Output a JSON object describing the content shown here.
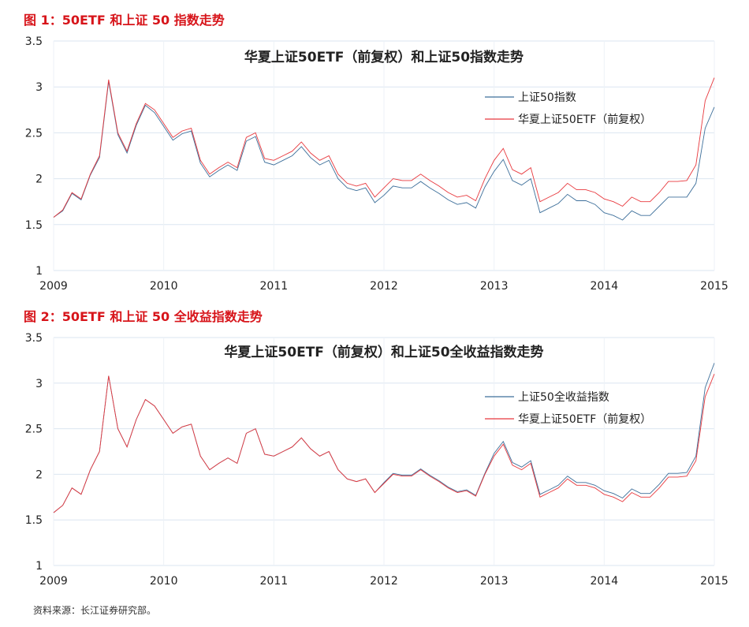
{
  "source": "资料来源：长江证券研究部。",
  "colors": {
    "red": "#e8383d",
    "blue": "#3d6f9a",
    "grid": "#dbe6f1"
  },
  "chart_data": [
    {
      "type": "line",
      "caption": "图 1：50ETF 和上证 50 指数走势",
      "title": "华夏上证50ETF（前复权）和上证50指数走势",
      "ylim": [
        1,
        3.5
      ],
      "yticks": [
        "1",
        "1.5",
        "2",
        "2.5",
        "3",
        "3.5"
      ],
      "xticks": [
        "2009",
        "2010",
        "2011",
        "2012",
        "2013",
        "2014",
        "2015"
      ],
      "grid": true,
      "legend": "top-right",
      "dates": [
        "2009-01",
        "2009-02",
        "2009-03",
        "2009-04",
        "2009-05",
        "2009-06",
        "2009-07",
        "2009-08",
        "2009-09",
        "2009-10",
        "2009-11",
        "2009-12",
        "2010-01",
        "2010-02",
        "2010-03",
        "2010-04",
        "2010-05",
        "2010-06",
        "2010-07",
        "2010-08",
        "2010-09",
        "2010-10",
        "2010-11",
        "2010-12",
        "2011-01",
        "2011-02",
        "2011-03",
        "2011-04",
        "2011-05",
        "2011-06",
        "2011-07",
        "2011-08",
        "2011-09",
        "2011-10",
        "2011-11",
        "2011-12",
        "2012-01",
        "2012-02",
        "2012-03",
        "2012-04",
        "2012-05",
        "2012-06",
        "2012-07",
        "2012-08",
        "2012-09",
        "2012-10",
        "2012-11",
        "2012-12",
        "2013-01",
        "2013-02",
        "2013-03",
        "2013-04",
        "2013-05",
        "2013-06",
        "2013-07",
        "2013-08",
        "2013-09",
        "2013-10",
        "2013-11",
        "2013-12",
        "2014-01",
        "2014-02",
        "2014-03",
        "2014-04",
        "2014-05",
        "2014-06",
        "2014-07",
        "2014-08",
        "2014-09",
        "2014-10",
        "2014-11",
        "2014-12",
        "2015-01"
      ],
      "series": [
        {
          "name": "上证50指数",
          "color": "#3d6f9a",
          "values": [
            1.58,
            1.65,
            1.84,
            1.77,
            2.04,
            2.23,
            3.06,
            2.48,
            2.28,
            2.58,
            2.8,
            2.72,
            2.57,
            2.42,
            2.49,
            2.52,
            2.17,
            2.02,
            2.09,
            2.15,
            2.09,
            2.41,
            2.46,
            2.18,
            2.15,
            2.2,
            2.25,
            2.35,
            2.23,
            2.15,
            2.2,
            2.0,
            1.9,
            1.87,
            1.9,
            1.74,
            1.82,
            1.92,
            1.9,
            1.9,
            1.97,
            1.9,
            1.84,
            1.77,
            1.72,
            1.74,
            1.68,
            1.91,
            2.08,
            2.21,
            1.98,
            1.93,
            2.0,
            1.63,
            1.68,
            1.73,
            1.83,
            1.76,
            1.76,
            1.72,
            1.63,
            1.6,
            1.55,
            1.65,
            1.6,
            1.6,
            1.7,
            1.8,
            1.8,
            1.8,
            1.95,
            2.55,
            2.78
          ]
        },
        {
          "name": "华夏上证50ETF（前复权）",
          "color": "#e8383d",
          "values": [
            1.58,
            1.66,
            1.85,
            1.78,
            2.05,
            2.25,
            3.08,
            2.5,
            2.3,
            2.6,
            2.82,
            2.75,
            2.6,
            2.45,
            2.52,
            2.55,
            2.2,
            2.05,
            2.12,
            2.18,
            2.12,
            2.45,
            2.5,
            2.22,
            2.2,
            2.25,
            2.3,
            2.4,
            2.28,
            2.2,
            2.25,
            2.05,
            1.95,
            1.92,
            1.95,
            1.8,
            1.9,
            2.0,
            1.98,
            1.98,
            2.05,
            1.98,
            1.92,
            1.85,
            1.8,
            1.82,
            1.76,
            2.0,
            2.2,
            2.33,
            2.1,
            2.05,
            2.12,
            1.75,
            1.8,
            1.85,
            1.95,
            1.88,
            1.88,
            1.85,
            1.78,
            1.75,
            1.7,
            1.8,
            1.75,
            1.75,
            1.85,
            1.97,
            1.97,
            1.98,
            2.15,
            2.85,
            3.1
          ]
        }
      ]
    },
    {
      "type": "line",
      "caption": "图 2：50ETF 和上证 50 全收益指数走势",
      "title": "华夏上证50ETF（前复权）和上证50全收益指数走势",
      "ylim": [
        1,
        3.5
      ],
      "yticks": [
        "1",
        "1.5",
        "2",
        "2.5",
        "3",
        "3.5"
      ],
      "xticks": [
        "2009",
        "2010",
        "2011",
        "2012",
        "2013",
        "2014",
        "2015"
      ],
      "grid": true,
      "legend": "top-right",
      "dates": [
        "2009-01",
        "2009-02",
        "2009-03",
        "2009-04",
        "2009-05",
        "2009-06",
        "2009-07",
        "2009-08",
        "2009-09",
        "2009-10",
        "2009-11",
        "2009-12",
        "2010-01",
        "2010-02",
        "2010-03",
        "2010-04",
        "2010-05",
        "2010-06",
        "2010-07",
        "2010-08",
        "2010-09",
        "2010-10",
        "2010-11",
        "2010-12",
        "2011-01",
        "2011-02",
        "2011-03",
        "2011-04",
        "2011-05",
        "2011-06",
        "2011-07",
        "2011-08",
        "2011-09",
        "2011-10",
        "2011-11",
        "2011-12",
        "2012-01",
        "2012-02",
        "2012-03",
        "2012-04",
        "2012-05",
        "2012-06",
        "2012-07",
        "2012-08",
        "2012-09",
        "2012-10",
        "2012-11",
        "2012-12",
        "2013-01",
        "2013-02",
        "2013-03",
        "2013-04",
        "2013-05",
        "2013-06",
        "2013-07",
        "2013-08",
        "2013-09",
        "2013-10",
        "2013-11",
        "2013-12",
        "2014-01",
        "2014-02",
        "2014-03",
        "2014-04",
        "2014-05",
        "2014-06",
        "2014-07",
        "2014-08",
        "2014-09",
        "2014-10",
        "2014-11",
        "2014-12",
        "2015-01"
      ],
      "series": [
        {
          "name": "上证50全收益指数",
          "color": "#3d6f9a",
          "values": [
            1.58,
            1.66,
            1.85,
            1.78,
            2.05,
            2.25,
            3.08,
            2.5,
            2.3,
            2.6,
            2.82,
            2.75,
            2.6,
            2.45,
            2.52,
            2.55,
            2.2,
            2.05,
            2.12,
            2.18,
            2.12,
            2.45,
            2.5,
            2.22,
            2.2,
            2.25,
            2.3,
            2.4,
            2.28,
            2.2,
            2.25,
            2.05,
            1.95,
            1.92,
            1.95,
            1.8,
            1.91,
            2.01,
            1.99,
            1.99,
            2.06,
            1.99,
            1.93,
            1.86,
            1.81,
            1.83,
            1.77,
            2.01,
            2.23,
            2.36,
            2.13,
            2.08,
            2.15,
            1.78,
            1.83,
            1.88,
            1.98,
            1.91,
            1.91,
            1.88,
            1.82,
            1.79,
            1.74,
            1.84,
            1.79,
            1.79,
            1.89,
            2.01,
            2.01,
            2.02,
            2.2,
            2.95,
            3.22
          ]
        },
        {
          "name": "华夏上证50ETF（前复权）",
          "color": "#e8383d",
          "values": [
            1.58,
            1.66,
            1.85,
            1.78,
            2.05,
            2.25,
            3.08,
            2.5,
            2.3,
            2.6,
            2.82,
            2.75,
            2.6,
            2.45,
            2.52,
            2.55,
            2.2,
            2.05,
            2.12,
            2.18,
            2.12,
            2.45,
            2.5,
            2.22,
            2.2,
            2.25,
            2.3,
            2.4,
            2.28,
            2.2,
            2.25,
            2.05,
            1.95,
            1.92,
            1.95,
            1.8,
            1.9,
            2.0,
            1.98,
            1.98,
            2.05,
            1.98,
            1.92,
            1.85,
            1.8,
            1.82,
            1.76,
            2.0,
            2.2,
            2.33,
            2.1,
            2.05,
            2.12,
            1.75,
            1.8,
            1.85,
            1.95,
            1.88,
            1.88,
            1.85,
            1.78,
            1.75,
            1.7,
            1.8,
            1.75,
            1.75,
            1.85,
            1.97,
            1.97,
            1.98,
            2.15,
            2.85,
            3.1
          ]
        }
      ]
    }
  ]
}
